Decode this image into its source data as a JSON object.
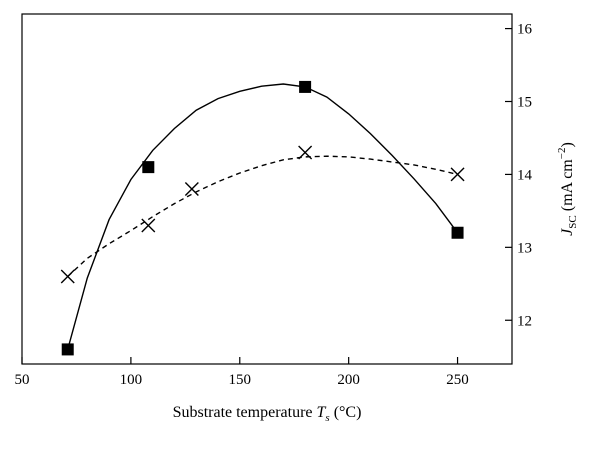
{
  "chart_data": {
    "type": "scatter",
    "title": "",
    "xlabel": "Substrate temperature T_s (°C)",
    "ylabel": "J_SC (mA cm^-2)",
    "xlabel_parts": {
      "pre": "Substrate temperature ",
      "var": "T",
      "sub": "s",
      "post": " (°C)"
    },
    "ylabel_parts": {
      "var": "J",
      "sub": "SC",
      "pre_unit": " (mA cm",
      "sup": "−2",
      "post": ")"
    },
    "xlim": [
      50,
      275
    ],
    "ylim": [
      11.4,
      16.2
    ],
    "xticks": [
      50,
      100,
      150,
      200,
      250
    ],
    "yticks": [
      12,
      13,
      14,
      15,
      16
    ],
    "y_axis_side": "right",
    "grid": false,
    "legend": "none",
    "series": [
      {
        "marker": "square",
        "line_style": "solid",
        "color": "#000000",
        "x": [
          71,
          108,
          180,
          250
        ],
        "y": [
          11.6,
          14.1,
          15.2,
          13.2
        ],
        "fit_curve": {
          "x": [
            71,
            80,
            90,
            100,
            110,
            120,
            130,
            140,
            150,
            160,
            170,
            180,
            190,
            200,
            210,
            220,
            230,
            240,
            250
          ],
          "y": [
            11.6,
            12.58,
            13.38,
            13.93,
            14.33,
            14.63,
            14.88,
            15.04,
            15.14,
            15.21,
            15.24,
            15.2,
            15.06,
            14.83,
            14.56,
            14.26,
            13.94,
            13.6,
            13.2
          ]
        }
      },
      {
        "marker": "x",
        "line_style": "dashed",
        "color": "#000000",
        "x": [
          71,
          108,
          128,
          180,
          250
        ],
        "y": [
          12.6,
          13.3,
          13.8,
          14.3,
          14.0
        ],
        "fit_curve": {
          "x": [
            71,
            80,
            90,
            100,
            110,
            120,
            130,
            140,
            150,
            160,
            170,
            180,
            190,
            200,
            210,
            220,
            230,
            240,
            250
          ],
          "y": [
            12.6,
            12.85,
            13.05,
            13.23,
            13.42,
            13.6,
            13.76,
            13.9,
            14.02,
            14.12,
            14.2,
            14.24,
            14.25,
            14.24,
            14.21,
            14.17,
            14.13,
            14.07,
            14.0
          ]
        }
      }
    ]
  }
}
